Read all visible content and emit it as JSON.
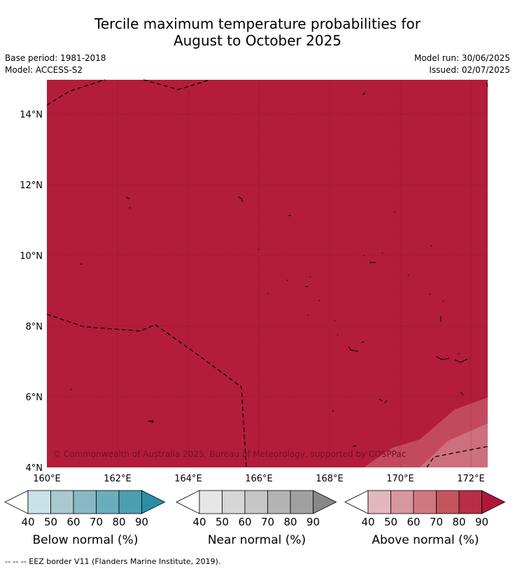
{
  "title": {
    "line1": "Tercile maximum temperature probabilities for",
    "line2": "August to October 2025"
  },
  "meta": {
    "base_period": "Base period: 1981-2018",
    "model": "Model: ACCESS-S2",
    "model_run": "Model run: 30/06/2025",
    "issued": "Issued: 02/07/2025"
  },
  "map": {
    "fill_color": "#b31d39",
    "longitude_labels": [
      "160°E",
      "162°E",
      "164°E",
      "166°E",
      "168°E",
      "170°E",
      "172°E"
    ],
    "latitude_labels": [
      "14°N",
      "12°N",
      "10°N",
      "8°N",
      "6°N",
      "4°N"
    ],
    "copyright": "© Commonwealth of Australia 2025, Bureau of Meteorology, supported by COSPPac"
  },
  "colorbars": [
    {
      "title": "Below normal (%)",
      "ticks": [
        "40",
        "50",
        "60",
        "70",
        "80",
        "90"
      ],
      "colors": [
        "#ffffff",
        "#c9e2e8",
        "#a8c9cf",
        "#88b8c4",
        "#6aaebd",
        "#4a9eb0",
        "#2b8fa3"
      ]
    },
    {
      "title": "Near normal (%)",
      "ticks": [
        "40",
        "50",
        "60",
        "70",
        "80",
        "90"
      ],
      "colors": [
        "#ffffff",
        "#e6e6e6",
        "#d6d6d6",
        "#c6c6c6",
        "#b3b3b3",
        "#a0a0a0",
        "#878787"
      ]
    },
    {
      "title": "Above normal (%)",
      "ticks": [
        "40",
        "50",
        "60",
        "70",
        "80",
        "90"
      ],
      "colors": [
        "#ffffff",
        "#e2b8be",
        "#d6979f",
        "#d07780",
        "#c4555f",
        "#b72e46",
        "#b0153a"
      ]
    }
  ],
  "footnote": "--  --  -- EEZ border V11 (Flanders Marine Institute, 2019)."
}
